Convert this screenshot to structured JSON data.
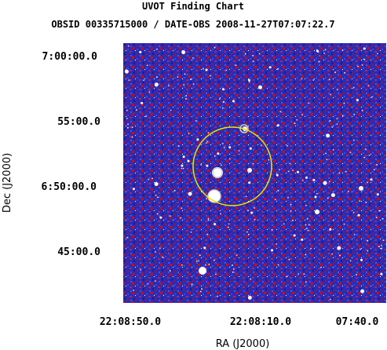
{
  "chart_data": {
    "type": "image",
    "title": "UVOT Finding Chart",
    "subtitle": "OBSID 00335715000 / DATE-OBS 2008-11-27T07:07:22.7",
    "xlabel": "RA (J2000)",
    "ylabel": "Dec (J2000)",
    "x_ticks": [
      "22:08:50.0",
      "22:08:10.0",
      "07:40.0"
    ],
    "y_ticks": [
      "7:00:00.0",
      "55:00.0",
      "6:50:00.0",
      "45:00.0"
    ],
    "colormap": [
      "#1a1a9a",
      "#3a3ad0",
      "#b4122e",
      "#e0405a",
      "#ffffff"
    ],
    "circle_color": "#e8e800",
    "marker_color": "#d0d0d0"
  }
}
